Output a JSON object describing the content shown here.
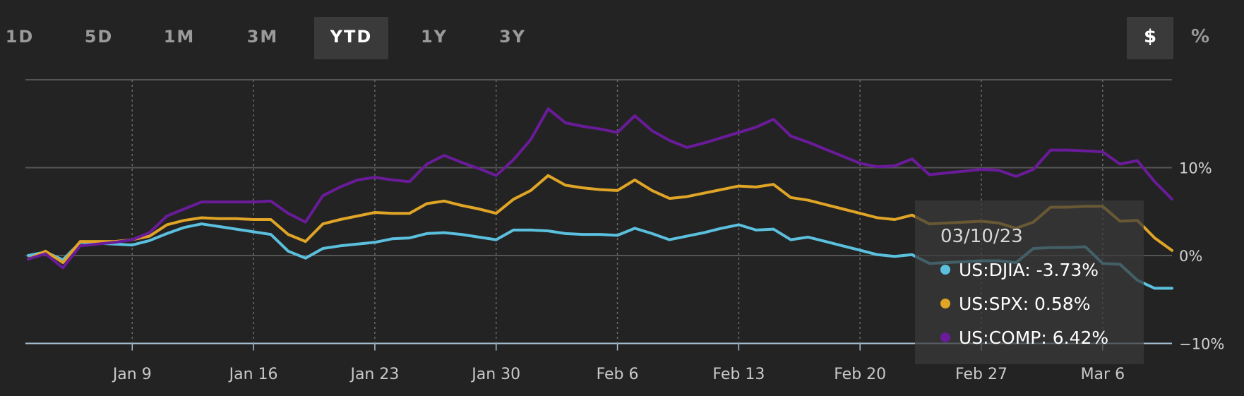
{
  "range_tabs": [
    "1D",
    "5D",
    "1M",
    "3M",
    "YTD",
    "1Y",
    "3Y"
  ],
  "active_tab": "YTD",
  "unit_toggle": {
    "dollar_label": "$",
    "percent_label": "%",
    "active": "$"
  },
  "colors": {
    "background": "#232323",
    "djia": "#5bc0de",
    "spx": "#e0a526",
    "comp": "#6a1b9a",
    "grid": "#555555"
  },
  "tooltip": {
    "date": "03/10/23",
    "rows": [
      {
        "label": "US:DJIA: -3.73%",
        "series": "djia"
      },
      {
        "label": "US:SPX: 0.58%",
        "series": "spx"
      },
      {
        "label": "US:COMP: 6.42%",
        "series": "comp"
      }
    ]
  },
  "chart_data": {
    "type": "line",
    "title": "",
    "xlabel": "",
    "ylabel": "",
    "x_tick_labels": [
      "Jan 9",
      "Jan 16",
      "Jan 23",
      "Jan 30",
      "Feb 6",
      "Feb 13",
      "Feb 20",
      "Feb 27",
      "Mar 6"
    ],
    "y_tick_labels": [
      "10%",
      "0%",
      "−10%"
    ],
    "y_tick_values": [
      10,
      0,
      -10
    ],
    "ylim": [
      -10,
      20
    ],
    "x_range": [
      0,
      66
    ],
    "x_tick_positions": [
      6,
      13,
      20,
      27,
      34,
      41,
      48,
      55,
      62
    ],
    "series": [
      {
        "name": "US:DJIA",
        "key": "djia",
        "x": [
          0,
          1,
          2,
          3,
          4,
          5,
          6,
          7,
          8,
          9,
          10,
          11,
          12,
          13,
          14,
          15,
          16,
          17,
          18,
          19,
          20,
          21,
          22,
          23,
          24,
          25,
          26,
          27,
          28,
          29,
          30,
          31,
          32,
          33,
          34,
          35,
          36,
          37,
          38,
          39,
          40,
          41,
          42,
          43,
          44,
          45,
          46,
          47,
          48,
          49,
          50,
          51,
          52,
          53,
          54,
          55,
          56,
          57,
          58,
          59,
          60,
          61,
          62,
          63,
          64,
          65,
          66
        ],
        "values": [
          0.0,
          0.4,
          -0.5,
          1.5,
          1.4,
          1.3,
          1.2,
          1.7,
          2.5,
          3.2,
          3.6,
          3.3,
          3.0,
          2.7,
          2.4,
          0.5,
          -0.3,
          0.8,
          1.1,
          1.3,
          1.5,
          1.9,
          2.0,
          2.5,
          2.6,
          2.4,
          2.1,
          1.8,
          2.9,
          2.9,
          2.8,
          2.5,
          2.4,
          2.4,
          2.3,
          3.1,
          2.5,
          1.8,
          2.2,
          2.6,
          3.1,
          3.5,
          2.9,
          3.0,
          1.8,
          2.1,
          1.6,
          1.1,
          0.6,
          0.1,
          -0.1,
          0.1,
          -0.9,
          -0.8,
          -0.7,
          -0.6,
          -0.6,
          -0.8,
          0.8,
          0.9,
          0.9,
          1.0,
          -0.9,
          -1.0,
          -2.8,
          -3.73,
          -3.73
        ]
      },
      {
        "name": "US:SPX",
        "key": "spx",
        "x": [
          0,
          1,
          2,
          3,
          4,
          5,
          6,
          7,
          8,
          9,
          10,
          11,
          12,
          13,
          14,
          15,
          16,
          17,
          18,
          19,
          20,
          21,
          22,
          23,
          24,
          25,
          26,
          27,
          28,
          29,
          30,
          31,
          32,
          33,
          34,
          35,
          36,
          37,
          38,
          39,
          40,
          41,
          42,
          43,
          44,
          45,
          46,
          47,
          48,
          49,
          50,
          51,
          52,
          53,
          54,
          55,
          56,
          57,
          58,
          59,
          60,
          61,
          62,
          63,
          64,
          65,
          66
        ],
        "values": [
          -0.4,
          0.5,
          -0.8,
          1.6,
          1.6,
          1.6,
          1.8,
          2.2,
          3.5,
          4.0,
          4.3,
          4.2,
          4.2,
          4.1,
          4.1,
          2.4,
          1.6,
          3.6,
          4.1,
          4.5,
          4.9,
          4.8,
          4.8,
          5.9,
          6.2,
          5.7,
          5.3,
          4.8,
          6.4,
          7.4,
          9.1,
          8.0,
          7.7,
          7.5,
          7.4,
          8.6,
          7.4,
          6.5,
          6.7,
          7.1,
          7.5,
          7.9,
          7.8,
          8.1,
          6.6,
          6.3,
          5.8,
          5.3,
          4.8,
          4.3,
          4.1,
          4.6,
          3.6,
          3.7,
          3.8,
          3.9,
          3.7,
          3.1,
          3.8,
          5.5,
          5.5,
          5.6,
          5.6,
          3.9,
          4.0,
          2.0,
          0.58
        ]
      },
      {
        "name": "US:COMP",
        "key": "comp",
        "x": [
          0,
          1,
          2,
          3,
          4,
          5,
          6,
          7,
          8,
          9,
          10,
          11,
          12,
          13,
          14,
          15,
          16,
          17,
          18,
          19,
          20,
          21,
          22,
          23,
          24,
          25,
          26,
          27,
          28,
          29,
          30,
          31,
          32,
          33,
          34,
          35,
          36,
          37,
          38,
          39,
          40,
          41,
          42,
          43,
          44,
          45,
          46,
          47,
          48,
          49,
          50,
          51,
          52,
          53,
          54,
          55,
          56,
          57,
          58,
          59,
          60,
          61,
          62,
          63,
          64,
          65,
          66
        ],
        "values": [
          -0.4,
          0.2,
          -1.4,
          1.1,
          1.3,
          1.5,
          1.8,
          2.6,
          4.5,
          5.3,
          6.1,
          6.1,
          6.1,
          6.1,
          6.2,
          4.8,
          3.8,
          6.8,
          7.8,
          8.6,
          8.9,
          8.6,
          8.4,
          10.4,
          11.4,
          10.6,
          9.9,
          9.1,
          10.9,
          13.2,
          16.7,
          15.1,
          14.7,
          14.4,
          14.0,
          15.9,
          14.2,
          13.1,
          12.3,
          12.8,
          13.4,
          14.0,
          14.6,
          15.5,
          13.6,
          12.9,
          12.1,
          11.3,
          10.5,
          10.1,
          10.2,
          11.0,
          9.2,
          9.4,
          9.6,
          9.8,
          9.7,
          9.0,
          9.8,
          12.0,
          12.0,
          11.9,
          11.8,
          10.4,
          10.8,
          8.4,
          6.42
        ]
      }
    ]
  }
}
